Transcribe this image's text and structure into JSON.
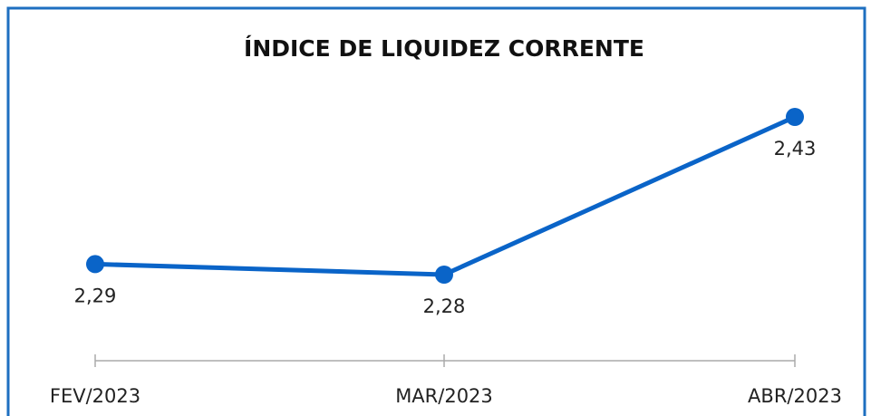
{
  "chart_data": {
    "type": "line",
    "title": "ÍNDICE DE LIQUIDEZ CORRENTE",
    "categories": [
      "FEV/2023",
      "MAR/2023",
      "ABR/2023"
    ],
    "values": [
      2.29,
      2.28,
      2.43
    ],
    "value_labels": [
      "2,29",
      "2,28",
      "2,43"
    ],
    "color": "#0a64c8"
  }
}
